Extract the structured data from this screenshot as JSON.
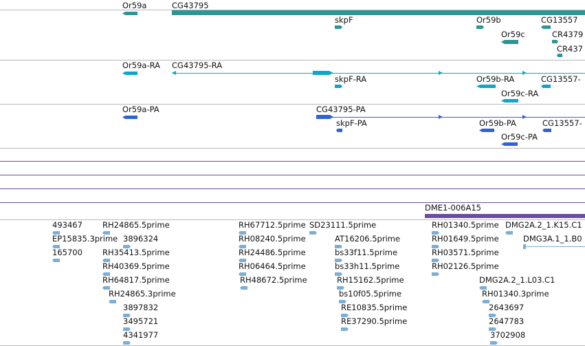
{
  "colors": {
    "gene": "#2e9494",
    "rna": "#0fa6c9",
    "protein": "#2f63d3",
    "clone": "#7aaed6",
    "misc": "#6a4d9e",
    "separator": "#b8b8b8"
  },
  "tracks": {
    "gene": {
      "labels": [
        "Or59a",
        "CG43795",
        "skpF",
        "Or59b",
        "Or59c",
        "CG13557",
        "CR4379",
        "CR437"
      ]
    },
    "mrna": {
      "labels": [
        "Or59a-RA",
        "CG43795-RA",
        "skpF-RA",
        "Or59b-RA",
        "Or59c-RA",
        "CG13557-"
      ]
    },
    "protein": {
      "labels": [
        "Or59a-PA",
        "CG43795-PA",
        "skpF-PA",
        "Or59b-PA",
        "Or59c-PA",
        "CG13557-"
      ]
    },
    "misc": {
      "labels": [
        "DME1-006A15"
      ]
    },
    "clones": {
      "labels": [
        "493467",
        "EP15835.3prime",
        "165700",
        "RH24865.5prime",
        "3896324",
        "RH35413.5prime",
        "RH40369.5prime",
        "RH64817.5prime",
        "RH24865.3prime",
        "3897832",
        "3495721",
        "4341977",
        "RH67712.5prime",
        "RH08240.5prime",
        "RH24486.5prime",
        "RH06464.5prime",
        "RH48672.5prime",
        "SD23111.5prime",
        "AT16206.5prime",
        "bs33f11.5prime",
        "bs33h11.5prime",
        "RH15162.5prime",
        "bs10f05.5prime",
        "RE10835.5prime",
        "RE37290.5prime",
        "RH01340.5prime",
        "RH01649.5prime",
        "RH03571.5prime",
        "RH02126.5prime",
        "DMG2A.2_1.K15.C1",
        "DMG3A.1_1.B0",
        "DMG2A.2_1.L03.C1",
        "RH01340.3prime",
        "2643697",
        "2647783",
        "3702908"
      ]
    }
  }
}
